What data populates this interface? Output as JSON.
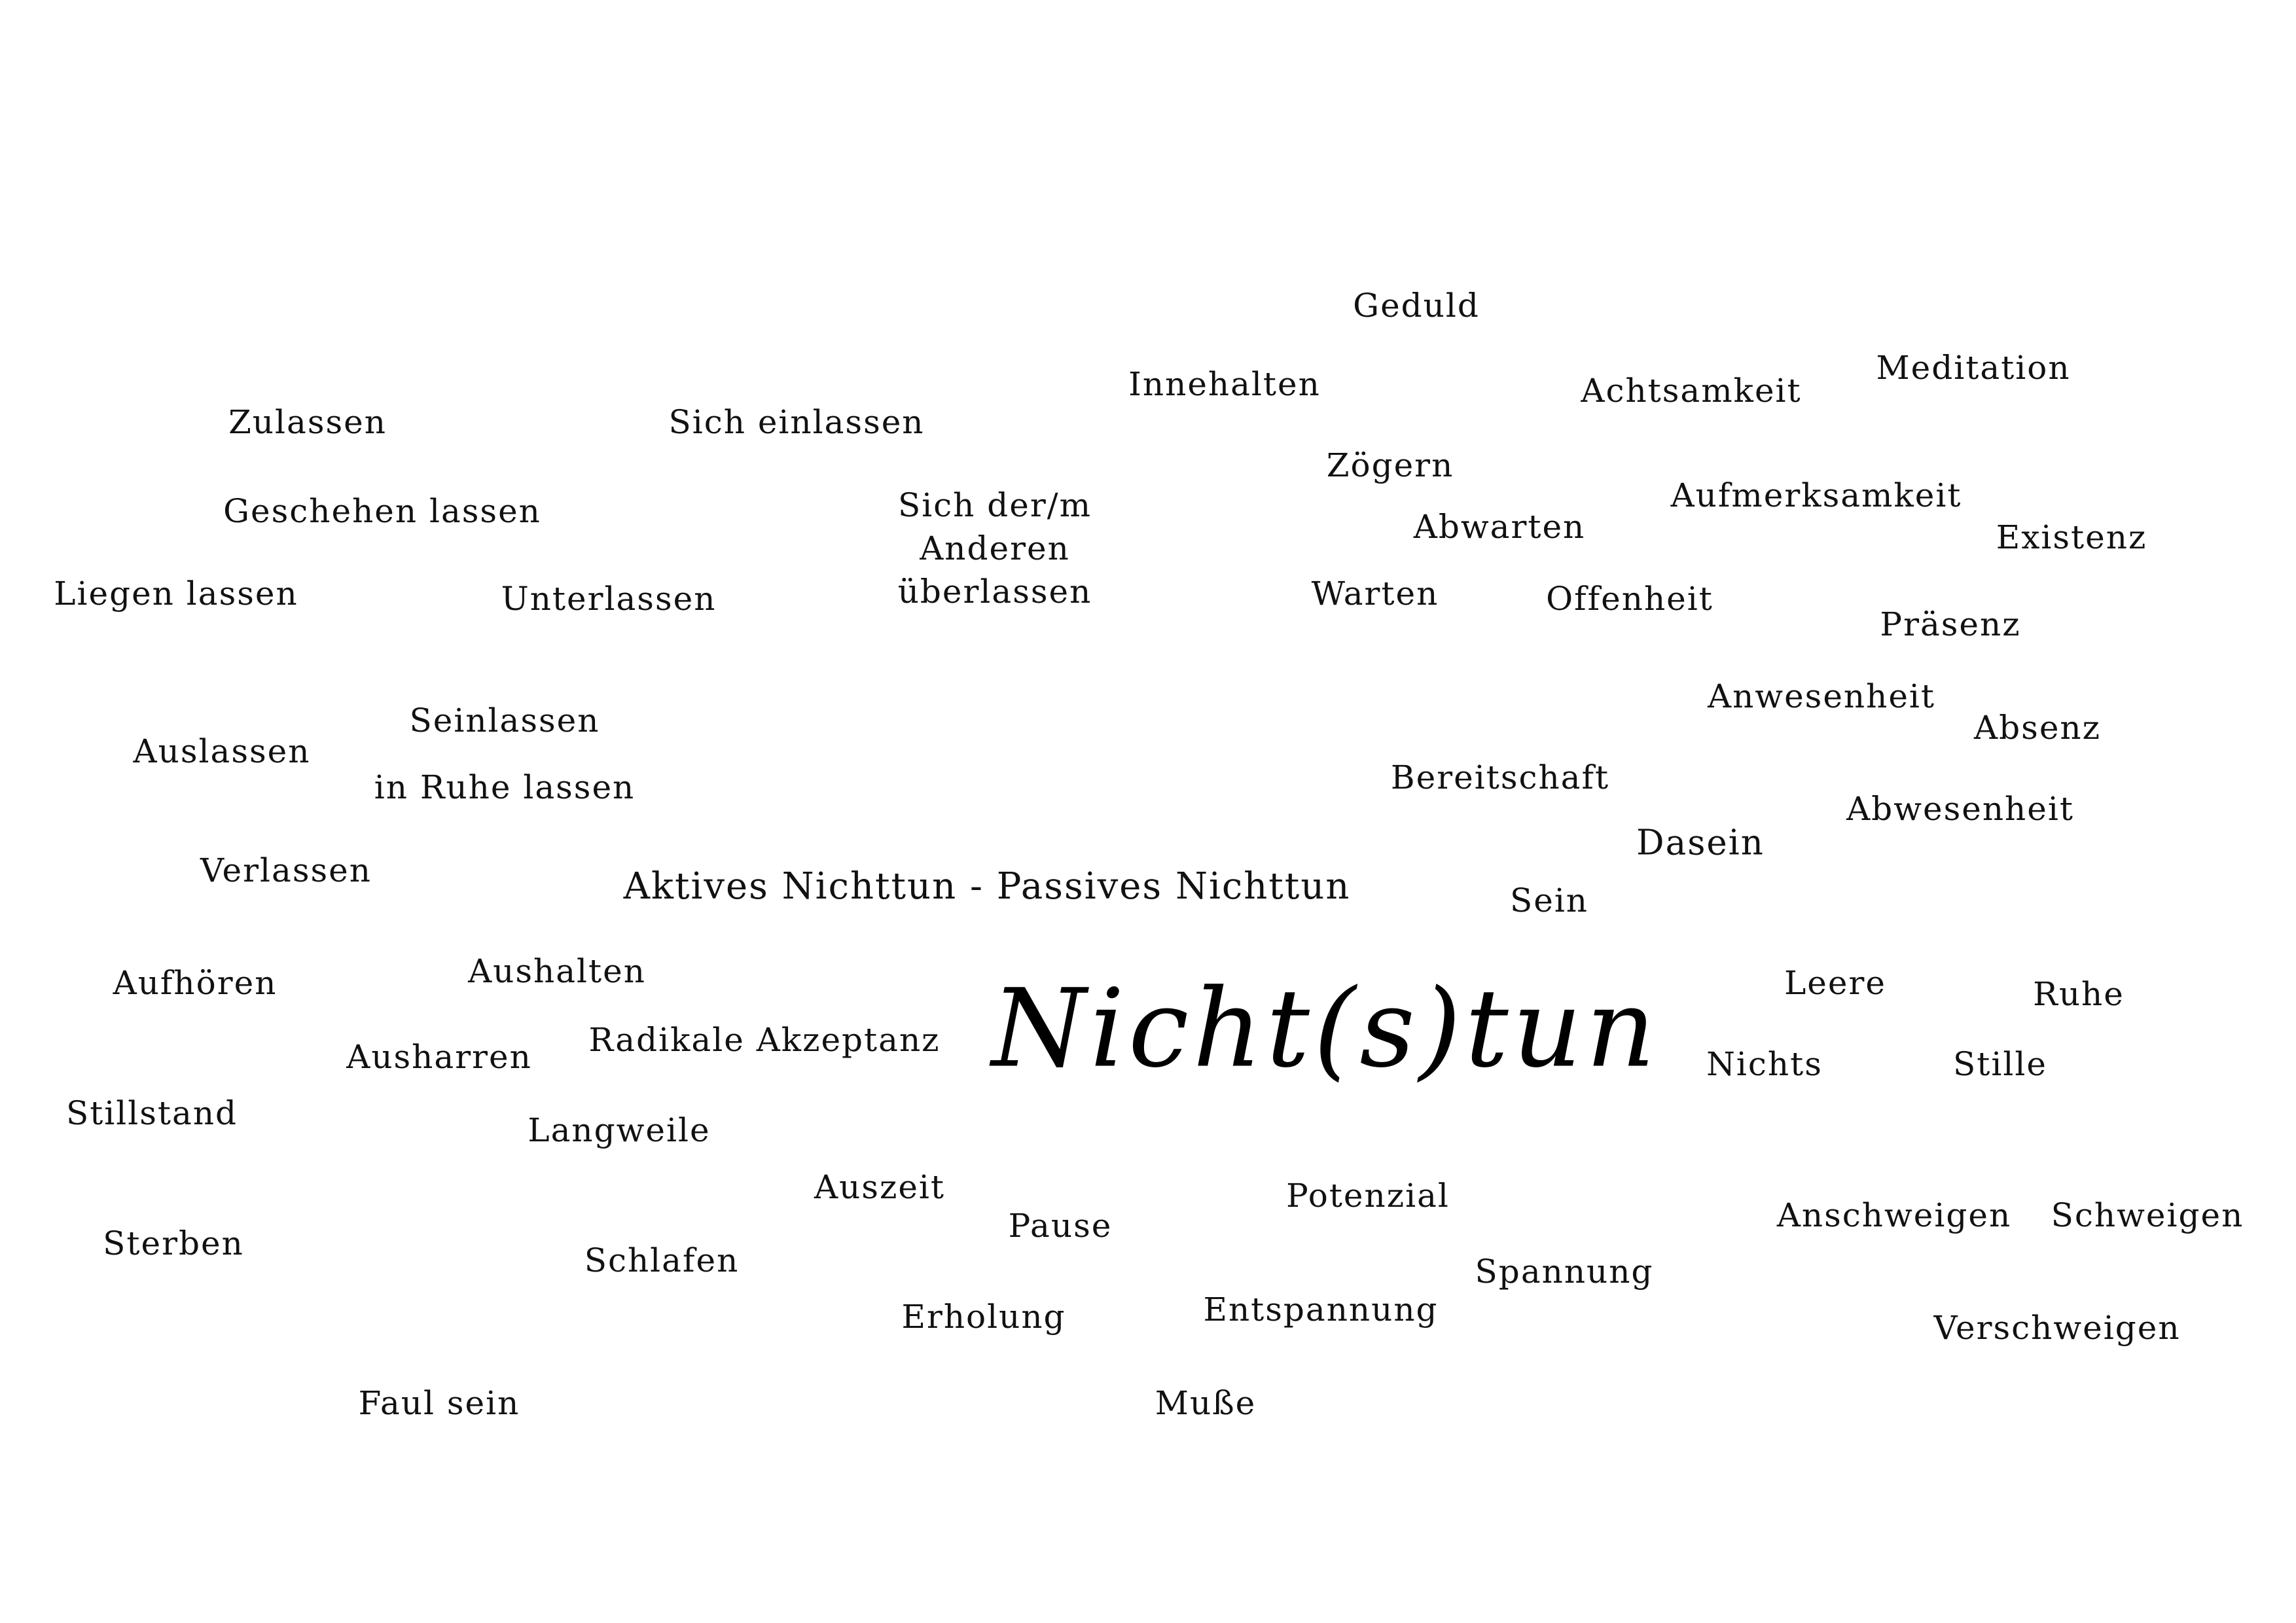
{
  "title": "Nicht(s)tun",
  "subtitle": "Aktives Nichttun - Passives Nichttun",
  "words": [
    "Geduld",
    "Innehalten",
    "Achtsamkeit",
    "Meditation",
    "Zulassen",
    "Sich einlassen",
    "Zögern",
    "Geschehen lassen",
    "Sich der/m Anderen überlassen",
    "Abwarten",
    "Aufmerksamkeit",
    "Existenz",
    "Liegen lassen",
    "Unterlassen",
    "Warten",
    "Offenheit",
    "Präsenz",
    "Anwesenheit",
    "Seinlassen",
    "Absenz",
    "Auslassen",
    "Bereitschaft",
    "in Ruhe lassen",
    "Abwesenheit",
    "Dasein",
    "Verlassen",
    "Sein",
    "Aufhören",
    "Aushalten",
    "Leere",
    "Ruhe",
    "Radikale Akzeptanz",
    "Ausharren",
    "Nichts",
    "Stille",
    "Stillstand",
    "Langweile",
    "Auszeit",
    "Potenzial",
    "Pause",
    "Anschweigen",
    "Schweigen",
    "Sterben",
    "Schlafen",
    "Spannung",
    "Entspannung",
    "Erholung",
    "Verschweigen",
    "Faul sein",
    "Muße"
  ]
}
